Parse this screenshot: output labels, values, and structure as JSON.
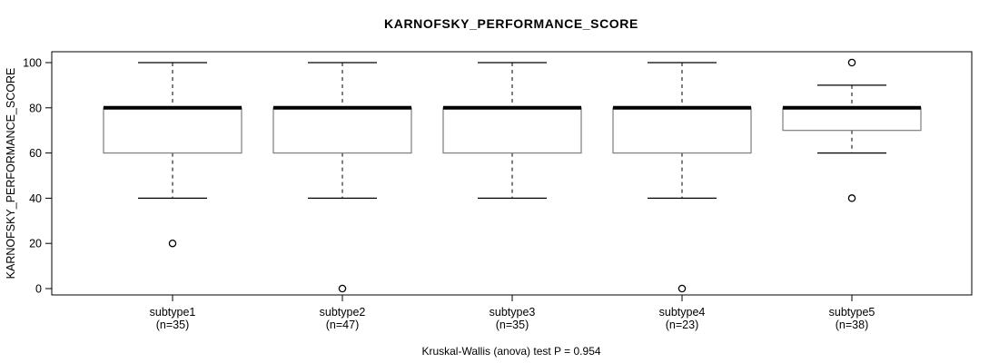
{
  "chart_data": {
    "type": "boxplot",
    "title": "KARNOFSKY_PERFORMANCE_SCORE",
    "ylabel": "KARNOFSKY_PERFORMANCE_SCORE",
    "xlabel": "",
    "caption": "Kruskal-Wallis (anova) test P = 0.954",
    "ylim": [
      0,
      100
    ],
    "yticks": [
      0,
      20,
      40,
      60,
      80,
      100
    ],
    "grid": false,
    "legend": "none",
    "groups": [
      {
        "label": "subtype1",
        "sublabel": "(n=35)",
        "n": 35,
        "whisker_low": 40,
        "q1": 60,
        "median": 80,
        "q3": 80,
        "whisker_high": 100,
        "outliers": [
          20
        ]
      },
      {
        "label": "subtype2",
        "sublabel": "(n=47)",
        "n": 47,
        "whisker_low": 40,
        "q1": 60,
        "median": 80,
        "q3": 80,
        "whisker_high": 100,
        "outliers": [
          0
        ]
      },
      {
        "label": "subtype3",
        "sublabel": "(n=35)",
        "n": 35,
        "whisker_low": 40,
        "q1": 60,
        "median": 80,
        "q3": 80,
        "whisker_high": 100,
        "outliers": []
      },
      {
        "label": "subtype4",
        "sublabel": "(n=23)",
        "n": 23,
        "whisker_low": 40,
        "q1": 60,
        "median": 80,
        "q3": 80,
        "whisker_high": 100,
        "outliers": [
          0
        ]
      },
      {
        "label": "subtype5",
        "sublabel": "(n=38)",
        "n": 38,
        "whisker_low": 60,
        "q1": 70,
        "median": 80,
        "q3": 80,
        "whisker_high": 90,
        "outliers": [
          100,
          40
        ]
      }
    ],
    "colors": {
      "background": "#ffffff",
      "line": "#000000",
      "box_border": "#7d7d7d",
      "box_fill": "#ffffff",
      "median": "#000000",
      "outlier_stroke": "#000000",
      "outlier_fill": "#ffffff"
    }
  }
}
